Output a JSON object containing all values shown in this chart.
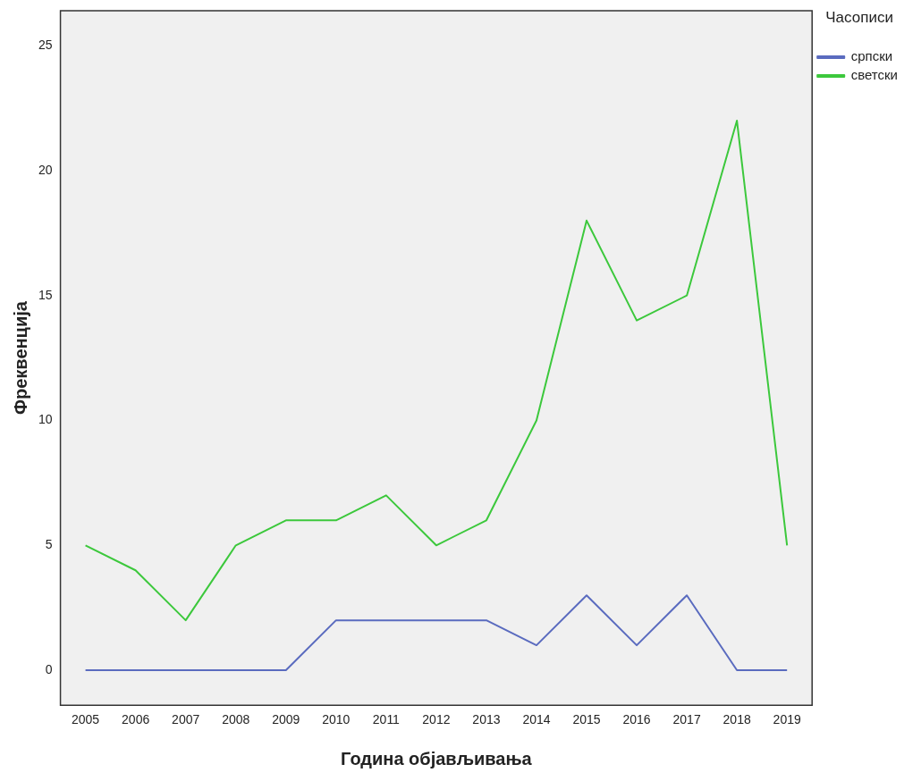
{
  "chart_data": {
    "type": "line",
    "xlabel": "Година објављивања",
    "ylabel": "Фреквенција",
    "legend_title": "Часописи",
    "categories": [
      "2005",
      "2006",
      "2007",
      "2008",
      "2009",
      "2010",
      "2011",
      "2012",
      "2013",
      "2014",
      "2015",
      "2016",
      "2017",
      "2018",
      "2019"
    ],
    "series": [
      {
        "name": "српски",
        "color": "#5a6bbf",
        "values": [
          0,
          0,
          0,
          0,
          0,
          2,
          2,
          2,
          2,
          1,
          3,
          1,
          3,
          0,
          0
        ]
      },
      {
        "name": "светски",
        "color": "#3cc83c",
        "values": [
          5,
          4,
          2,
          5,
          6,
          6,
          7,
          5,
          6,
          10,
          18,
          14,
          15,
          22,
          5
        ]
      }
    ],
    "ylim": [
      -1.4,
      26.4
    ],
    "yticks": [
      0,
      5,
      10,
      15,
      20,
      25
    ],
    "grid": false,
    "legend": "top right",
    "marker": "none",
    "line_style": "solid"
  }
}
